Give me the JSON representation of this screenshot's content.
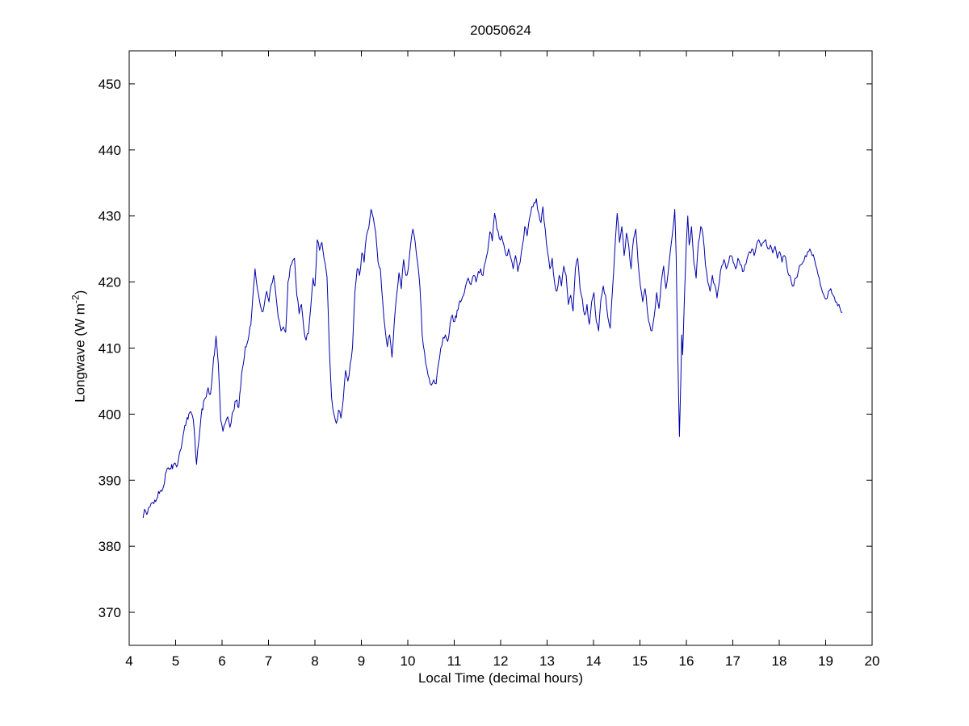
{
  "figure": {
    "background": "#ffffff"
  },
  "chart_data": {
    "type": "line",
    "title": "20050624",
    "xlabel": "Local Time (decimal hours)",
    "ylabel": "Longwave (W m^-2)",
    "ylabel_parts": {
      "pre": "Longwave (W m",
      "sup": "-2",
      "post": ")"
    },
    "xlim": [
      4,
      20
    ],
    "ylim": [
      365,
      455
    ],
    "xticks": [
      4,
      5,
      6,
      7,
      8,
      9,
      10,
      11,
      12,
      13,
      14,
      15,
      16,
      17,
      18,
      19,
      20
    ],
    "yticks": [
      370,
      380,
      390,
      400,
      410,
      420,
      430,
      440,
      450
    ],
    "grid": false,
    "legend": "none",
    "line_color": "#0000AA",
    "line_width": 1,
    "axis_color": "#000000",
    "render": {
      "jitter": 0.5,
      "step": 0.0167,
      "seed": 42
    },
    "points": [
      [
        4.3,
        384.3
      ],
      [
        4.33,
        385.6
      ],
      [
        4.38,
        384.8
      ],
      [
        4.45,
        386.0
      ],
      [
        4.55,
        387.0
      ],
      [
        4.65,
        388.0
      ],
      [
        4.72,
        388.6
      ],
      [
        4.8,
        391.3
      ],
      [
        4.88,
        391.8
      ],
      [
        4.95,
        392.3
      ],
      [
        5.02,
        392.0
      ],
      [
        5.1,
        394.5
      ],
      [
        5.18,
        397.5
      ],
      [
        5.25,
        399.5
      ],
      [
        5.32,
        400.4
      ],
      [
        5.38,
        399.2
      ],
      [
        5.45,
        392.4
      ],
      [
        5.5,
        396.0
      ],
      [
        5.55,
        399.8
      ],
      [
        5.62,
        402.2
      ],
      [
        5.7,
        404.0
      ],
      [
        5.75,
        403.0
      ],
      [
        5.8,
        406.8
      ],
      [
        5.87,
        411.8
      ],
      [
        5.92,
        407.5
      ],
      [
        5.97,
        399.2
      ],
      [
        6.02,
        397.4
      ],
      [
        6.07,
        398.6
      ],
      [
        6.12,
        399.6
      ],
      [
        6.17,
        398.0
      ],
      [
        6.22,
        400.2
      ],
      [
        6.3,
        402.0
      ],
      [
        6.36,
        401.0
      ],
      [
        6.42,
        406.0
      ],
      [
        6.5,
        410.2
      ],
      [
        6.56,
        411.2
      ],
      [
        6.62,
        413.5
      ],
      [
        6.67,
        418.5
      ],
      [
        6.71,
        422.0
      ],
      [
        6.76,
        419.0
      ],
      [
        6.81,
        417.0
      ],
      [
        6.86,
        415.5
      ],
      [
        6.91,
        416.6
      ],
      [
        6.96,
        418.6
      ],
      [
        7.01,
        417.0
      ],
      [
        7.06,
        419.6
      ],
      [
        7.11,
        421.0
      ],
      [
        7.16,
        418.0
      ],
      [
        7.21,
        414.6
      ],
      [
        7.27,
        412.6
      ],
      [
        7.32,
        413.2
      ],
      [
        7.37,
        412.4
      ],
      [
        7.42,
        420.0
      ],
      [
        7.47,
        422.4
      ],
      [
        7.52,
        423.2
      ],
      [
        7.56,
        423.6
      ],
      [
        7.61,
        418.0
      ],
      [
        7.66,
        415.2
      ],
      [
        7.71,
        416.6
      ],
      [
        7.76,
        413.0
      ],
      [
        7.81,
        411.2
      ],
      [
        7.86,
        412.2
      ],
      [
        7.91,
        416.2
      ],
      [
        7.96,
        420.6
      ],
      [
        8.0,
        419.4
      ],
      [
        8.05,
        426.4
      ],
      [
        8.1,
        424.8
      ],
      [
        8.15,
        426.0
      ],
      [
        8.2,
        423.4
      ],
      [
        8.26,
        420.8
      ],
      [
        8.31,
        410.0
      ],
      [
        8.36,
        402.4
      ],
      [
        8.41,
        400.0
      ],
      [
        8.46,
        398.6
      ],
      [
        8.51,
        400.6
      ],
      [
        8.56,
        399.4
      ],
      [
        8.61,
        402.2
      ],
      [
        8.66,
        406.6
      ],
      [
        8.71,
        405.0
      ],
      [
        8.76,
        407.6
      ],
      [
        8.81,
        410.2
      ],
      [
        8.86,
        418.4
      ],
      [
        8.91,
        422.0
      ],
      [
        8.96,
        421.0
      ],
      [
        9.01,
        424.4
      ],
      [
        9.06,
        423.0
      ],
      [
        9.11,
        427.0
      ],
      [
        9.16,
        428.2
      ],
      [
        9.21,
        431.0
      ],
      [
        9.26,
        429.6
      ],
      [
        9.31,
        427.4
      ],
      [
        9.36,
        423.0
      ],
      [
        9.41,
        422.0
      ],
      [
        9.46,
        417.0
      ],
      [
        9.51,
        413.0
      ],
      [
        9.56,
        410.2
      ],
      [
        9.61,
        412.0
      ],
      [
        9.66,
        408.6
      ],
      [
        9.71,
        414.0
      ],
      [
        9.76,
        418.0
      ],
      [
        9.81,
        421.4
      ],
      [
        9.86,
        419.0
      ],
      [
        9.91,
        423.4
      ],
      [
        9.96,
        421.0
      ],
      [
        10.01,
        422.0
      ],
      [
        10.06,
        425.6
      ],
      [
        10.11,
        428.0
      ],
      [
        10.16,
        426.0
      ],
      [
        10.21,
        423.0
      ],
      [
        10.26,
        419.4
      ],
      [
        10.31,
        412.0
      ],
      [
        10.36,
        409.4
      ],
      [
        10.41,
        407.0
      ],
      [
        10.46,
        405.4
      ],
      [
        10.51,
        404.4
      ],
      [
        10.56,
        405.2
      ],
      [
        10.61,
        404.6
      ],
      [
        10.66,
        407.6
      ],
      [
        10.71,
        410.0
      ],
      [
        10.76,
        411.6
      ],
      [
        10.81,
        412.0
      ],
      [
        10.86,
        411.0
      ],
      [
        10.91,
        413.6
      ],
      [
        10.96,
        415.0
      ],
      [
        11.01,
        414.0
      ],
      [
        11.1,
        416.6
      ],
      [
        11.2,
        418.0
      ],
      [
        11.3,
        420.6
      ],
      [
        11.36,
        419.6
      ],
      [
        11.42,
        421.0
      ],
      [
        11.47,
        420.0
      ],
      [
        11.52,
        421.6
      ],
      [
        11.57,
        422.0
      ],
      [
        11.62,
        421.0
      ],
      [
        11.67,
        423.0
      ],
      [
        11.72,
        424.6
      ],
      [
        11.77,
        427.6
      ],
      [
        11.82,
        426.2
      ],
      [
        11.87,
        430.4
      ],
      [
        11.92,
        428.0
      ],
      [
        11.97,
        426.6
      ],
      [
        12.02,
        427.0
      ],
      [
        12.07,
        425.6
      ],
      [
        12.12,
        424.0
      ],
      [
        12.17,
        425.0
      ],
      [
        12.22,
        423.6
      ],
      [
        12.27,
        422.0
      ],
      [
        12.32,
        424.0
      ],
      [
        12.37,
        421.6
      ],
      [
        12.42,
        423.0
      ],
      [
        12.47,
        425.6
      ],
      [
        12.52,
        428.4
      ],
      [
        12.57,
        427.0
      ],
      [
        12.62,
        429.6
      ],
      [
        12.67,
        431.4
      ],
      [
        12.72,
        432.0
      ],
      [
        12.77,
        432.6
      ],
      [
        12.82,
        430.4
      ],
      [
        12.87,
        429.0
      ],
      [
        12.91,
        431.4
      ],
      [
        12.96,
        428.0
      ],
      [
        13.01,
        424.6
      ],
      [
        13.06,
        422.0
      ],
      [
        13.11,
        423.6
      ],
      [
        13.16,
        420.0
      ],
      [
        13.21,
        418.6
      ],
      [
        13.26,
        421.0
      ],
      [
        13.31,
        419.4
      ],
      [
        13.36,
        422.4
      ],
      [
        13.41,
        421.0
      ],
      [
        13.46,
        416.6
      ],
      [
        13.51,
        418.0
      ],
      [
        13.56,
        415.6
      ],
      [
        13.61,
        422.0
      ],
      [
        13.66,
        423.6
      ],
      [
        13.71,
        419.0
      ],
      [
        13.76,
        417.4
      ],
      [
        13.81,
        415.0
      ],
      [
        13.86,
        416.6
      ],
      [
        13.91,
        413.6
      ],
      [
        13.96,
        417.0
      ],
      [
        14.01,
        418.4
      ],
      [
        14.06,
        414.0
      ],
      [
        14.11,
        412.6
      ],
      [
        14.16,
        417.4
      ],
      [
        14.21,
        419.4
      ],
      [
        14.26,
        418.0
      ],
      [
        14.31,
        414.6
      ],
      [
        14.36,
        413.0
      ],
      [
        14.41,
        419.0
      ],
      [
        14.46,
        425.0
      ],
      [
        14.51,
        430.4
      ],
      [
        14.56,
        426.0
      ],
      [
        14.61,
        428.4
      ],
      [
        14.66,
        424.0
      ],
      [
        14.71,
        427.4
      ],
      [
        14.76,
        425.4
      ],
      [
        14.81,
        422.0
      ],
      [
        14.86,
        426.4
      ],
      [
        14.91,
        428.0
      ],
      [
        14.96,
        423.0
      ],
      [
        15.01,
        419.4
      ],
      [
        15.06,
        417.0
      ],
      [
        15.11,
        419.0
      ],
      [
        15.16,
        415.6
      ],
      [
        15.21,
        413.6
      ],
      [
        15.26,
        412.6
      ],
      [
        15.31,
        415.0
      ],
      [
        15.36,
        418.4
      ],
      [
        15.41,
        416.0
      ],
      [
        15.46,
        420.0
      ],
      [
        15.51,
        422.4
      ],
      [
        15.56,
        419.0
      ],
      [
        15.61,
        421.6
      ],
      [
        15.66,
        425.0
      ],
      [
        15.71,
        428.0
      ],
      [
        15.75,
        431.0
      ],
      [
        15.78,
        424.0
      ],
      [
        15.8,
        415.0
      ],
      [
        15.82,
        407.4
      ],
      [
        15.85,
        396.6
      ],
      [
        15.88,
        405.0
      ],
      [
        15.9,
        412.0
      ],
      [
        15.92,
        409.0
      ],
      [
        15.96,
        418.0
      ],
      [
        16.0,
        426.0
      ],
      [
        16.03,
        430.0
      ],
      [
        16.06,
        425.6
      ],
      [
        16.11,
        428.4
      ],
      [
        16.16,
        423.0
      ],
      [
        16.21,
        420.6
      ],
      [
        16.26,
        426.0
      ],
      [
        16.31,
        428.4
      ],
      [
        16.36,
        427.0
      ],
      [
        16.41,
        422.6
      ],
      [
        16.46,
        420.0
      ],
      [
        16.51,
        418.6
      ],
      [
        16.56,
        421.0
      ],
      [
        16.61,
        419.6
      ],
      [
        16.66,
        417.6
      ],
      [
        16.71,
        420.0
      ],
      [
        16.76,
        422.4
      ],
      [
        16.81,
        423.4
      ],
      [
        16.86,
        422.0
      ],
      [
        16.91,
        423.0
      ],
      [
        16.96,
        424.0
      ],
      [
        17.01,
        423.0
      ],
      [
        17.06,
        422.0
      ],
      [
        17.11,
        423.6
      ],
      [
        17.16,
        422.6
      ],
      [
        17.21,
        421.6
      ],
      [
        17.26,
        422.6
      ],
      [
        17.31,
        423.6
      ],
      [
        17.36,
        424.6
      ],
      [
        17.41,
        425.0
      ],
      [
        17.46,
        424.0
      ],
      [
        17.51,
        425.6
      ],
      [
        17.56,
        426.4
      ],
      [
        17.61,
        425.4
      ],
      [
        17.66,
        426.0
      ],
      [
        17.71,
        426.4
      ],
      [
        17.76,
        425.0
      ],
      [
        17.81,
        425.6
      ],
      [
        17.86,
        424.4
      ],
      [
        17.91,
        425.4
      ],
      [
        17.96,
        423.6
      ],
      [
        18.01,
        424.6
      ],
      [
        18.06,
        423.0
      ],
      [
        18.11,
        424.0
      ],
      [
        18.16,
        422.6
      ],
      [
        18.21,
        421.0
      ],
      [
        18.26,
        420.0
      ],
      [
        18.31,
        419.4
      ],
      [
        18.36,
        420.6
      ],
      [
        18.41,
        421.6
      ],
      [
        18.46,
        422.6
      ],
      [
        18.51,
        423.0
      ],
      [
        18.56,
        424.0
      ],
      [
        18.61,
        424.6
      ],
      [
        18.66,
        425.0
      ],
      [
        18.71,
        424.0
      ],
      [
        18.76,
        423.4
      ],
      [
        18.81,
        422.0
      ],
      [
        18.86,
        420.6
      ],
      [
        18.91,
        419.0
      ],
      [
        18.96,
        418.0
      ],
      [
        19.01,
        417.4
      ],
      [
        19.06,
        418.6
      ],
      [
        19.11,
        419.0
      ],
      [
        19.16,
        418.0
      ],
      [
        19.21,
        417.0
      ],
      [
        19.26,
        416.4
      ],
      [
        19.31,
        416.0
      ],
      [
        19.36,
        415.4
      ]
    ]
  }
}
